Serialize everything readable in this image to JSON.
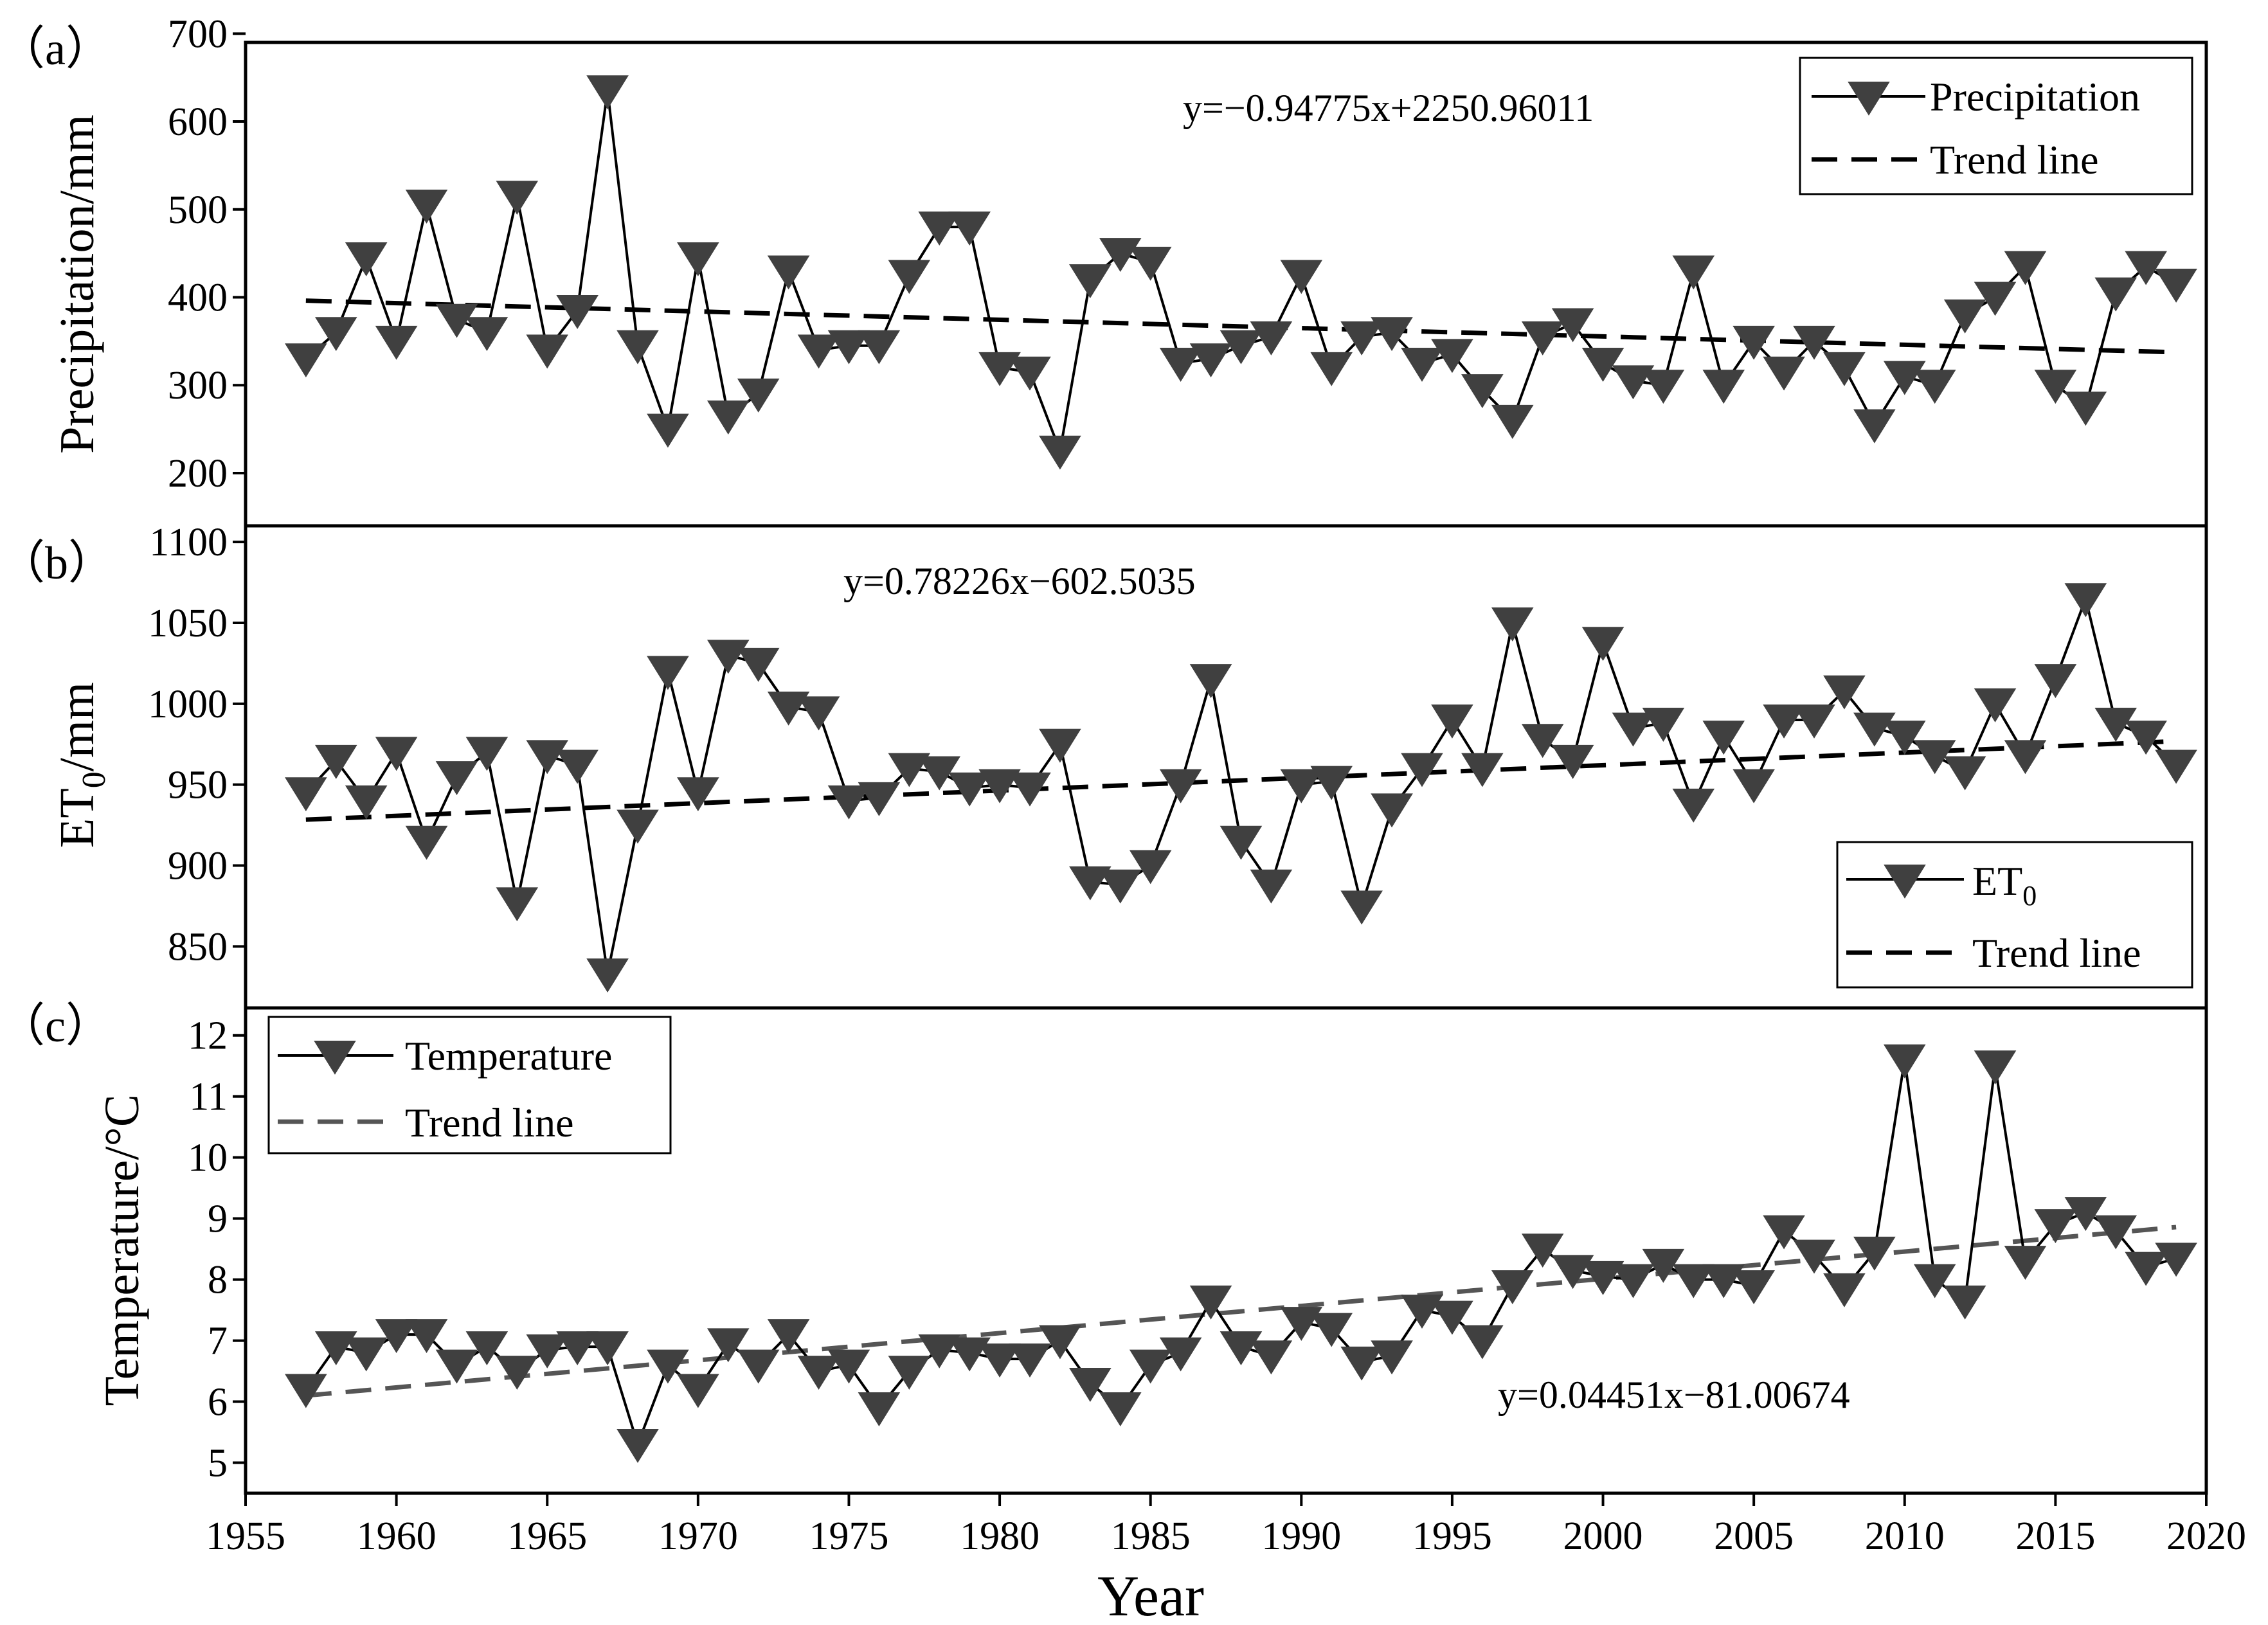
{
  "figure": {
    "xlabel": "Year",
    "x_ticks": [
      1955,
      1960,
      1965,
      1970,
      1975,
      1980,
      1985,
      1990,
      1995,
      2000,
      2005,
      2010,
      2015,
      2020
    ],
    "xlim": [
      1955,
      2020
    ],
    "colors": {
      "marker": "#404040",
      "line": "#000000",
      "trend": "#000000",
      "trend_c": "#555555"
    }
  },
  "chart_data": [
    {
      "type": "line",
      "panel_label": "（a）",
      "ylabel": "Precipitation/mm",
      "ylim": [
        140,
        690
      ],
      "y_ticks": [
        200,
        300,
        400,
        500,
        600,
        700
      ],
      "equation": "y=−0.94775x+2250.96011",
      "legend": {
        "series": "Precipitation",
        "trend": "Trend line",
        "placement": "top-right"
      },
      "x": [
        1957,
        1958,
        1959,
        1960,
        1961,
        1962,
        1963,
        1964,
        1965,
        1966,
        1967,
        1968,
        1969,
        1970,
        1971,
        1972,
        1973,
        1974,
        1975,
        1976,
        1977,
        1978,
        1979,
        1980,
        1981,
        1982,
        1983,
        1984,
        1985,
        1986,
        1987,
        1988,
        1989,
        1990,
        1991,
        1992,
        1993,
        1994,
        1995,
        1996,
        1997,
        1998,
        1999,
        2000,
        2001,
        2002,
        2003,
        2004,
        2005,
        2006,
        2007,
        2008,
        2009,
        2010,
        2011,
        2012,
        2013,
        2014,
        2015,
        2016,
        2017,
        2018,
        2019
      ],
      "values": [
        330,
        360,
        445,
        350,
        505,
        375,
        360,
        515,
        340,
        385,
        635,
        345,
        250,
        445,
        265,
        290,
        430,
        340,
        345,
        345,
        425,
        480,
        480,
        320,
        315,
        225,
        420,
        450,
        440,
        325,
        330,
        345,
        355,
        425,
        320,
        355,
        360,
        325,
        335,
        295,
        260,
        355,
        370,
        325,
        305,
        300,
        430,
        300,
        350,
        315,
        350,
        320,
        255,
        310,
        300,
        380,
        400,
        435,
        300,
        275,
        405,
        435,
        415
      ],
      "trend": {
        "slope": -0.94775,
        "intercept": 2250.96011
      }
    },
    {
      "type": "line",
      "panel_label": "（b）",
      "ylabel": "ET",
      "ylabel_sub": "0",
      "ylabel_suffix": "/mm",
      "ylim": [
        812,
        1110
      ],
      "y_ticks": [
        850,
        900,
        950,
        1000,
        1050,
        1100
      ],
      "equation": "y=0.78226x−602.5035",
      "legend": {
        "series": "ET",
        "series_sub": "0",
        "trend": "Trend line",
        "placement": "bottom-right"
      },
      "x": [
        1957,
        1958,
        1959,
        1960,
        1961,
        1962,
        1963,
        1964,
        1965,
        1966,
        1967,
        1968,
        1969,
        1970,
        1971,
        1972,
        1973,
        1974,
        1975,
        1976,
        1977,
        1978,
        1979,
        1980,
        1981,
        1982,
        1983,
        1984,
        1985,
        1986,
        1987,
        1988,
        1989,
        1990,
        1991,
        1992,
        1993,
        1994,
        1995,
        1996,
        1997,
        1998,
        1999,
        2000,
        2001,
        2002,
        2003,
        2004,
        2005,
        2006,
        2007,
        2008,
        2009,
        2010,
        2011,
        2012,
        2013,
        2014,
        2015,
        2016,
        2017,
        2018,
        2019
      ],
      "values": [
        945,
        965,
        940,
        970,
        915,
        955,
        970,
        877,
        968,
        962,
        833,
        925,
        1020,
        945,
        1030,
        1025,
        998,
        995,
        940,
        942,
        960,
        958,
        948,
        950,
        948,
        975,
        890,
        888,
        900,
        950,
        1015,
        915,
        888,
        950,
        952,
        875,
        935,
        960,
        990,
        960,
        1050,
        978,
        965,
        1038,
        985,
        988,
        938,
        980,
        950,
        990,
        990,
        1008,
        985,
        980,
        968,
        958,
        1000,
        968,
        1015,
        1065,
        988,
        980,
        962
      ],
      "trend": {
        "slope": 0.78226,
        "intercept": -602.5035
      }
    },
    {
      "type": "line",
      "panel_label": "（c）",
      "ylabel": "Temperature/°C",
      "ylim": [
        4.5,
        12.45
      ],
      "y_ticks": [
        5,
        6,
        7,
        8,
        9,
        10,
        11,
        12
      ],
      "equation": "y=0.04451x−81.00674",
      "legend": {
        "series": "Temperature",
        "trend": "Trend line",
        "placement": "top-left"
      },
      "x": [
        1957,
        1958,
        1959,
        1960,
        1961,
        1962,
        1963,
        1964,
        1965,
        1966,
        1967,
        1968,
        1969,
        1970,
        1971,
        1972,
        1973,
        1974,
        1975,
        1976,
        1977,
        1978,
        1979,
        1980,
        1981,
        1982,
        1983,
        1984,
        1985,
        1986,
        1987,
        1988,
        1989,
        1990,
        1991,
        1992,
        1993,
        1994,
        1995,
        1996,
        1997,
        1998,
        1999,
        2000,
        2001,
        2002,
        2003,
        2004,
        2005,
        2006,
        2007,
        2008,
        2009,
        2010,
        2011,
        2012,
        2013,
        2014,
        2015,
        2016,
        2017,
        2018,
        2019
      ],
      "values": [
        6.2,
        6.9,
        6.8,
        7.1,
        7.1,
        6.6,
        6.9,
        6.5,
        6.85,
        6.9,
        6.9,
        5.3,
        6.6,
        6.2,
        6.95,
        6.6,
        7.1,
        6.5,
        6.6,
        5.9,
        6.5,
        6.85,
        6.8,
        6.7,
        6.7,
        7.0,
        6.3,
        5.9,
        6.6,
        6.8,
        7.65,
        6.9,
        6.75,
        7.3,
        7.2,
        6.65,
        6.75,
        7.5,
        7.4,
        7.0,
        7.9,
        8.5,
        8.15,
        8.05,
        8.0,
        8.25,
        8.0,
        8.0,
        7.9,
        8.8,
        8.4,
        7.85,
        8.45,
        11.6,
        8.0,
        7.65,
        11.5,
        8.3,
        8.9,
        9.1,
        8.8,
        8.2,
        8.35
      ],
      "trend": {
        "slope": 0.04451,
        "intercept": -81.00674
      }
    }
  ]
}
